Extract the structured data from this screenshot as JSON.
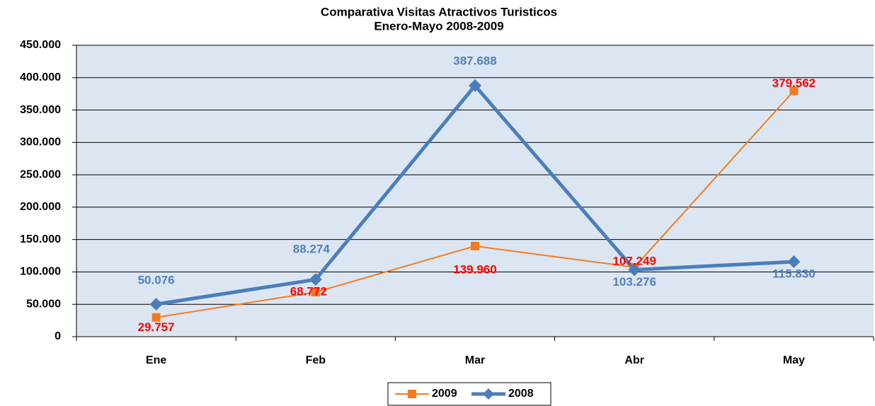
{
  "chart_data": {
    "type": "line",
    "title": "Comparativa Visitas Atractivos Turisticos",
    "subtitle": "Enero-Mayo 2008-2009",
    "categories": [
      "Ene",
      "Feb",
      "Mar",
      "Abr",
      "May"
    ],
    "series": [
      {
        "name": "2009",
        "color": "#f47b20",
        "label_color": "#ff0000",
        "marker": "square",
        "values": [
          29757,
          68772,
          139960,
          107249,
          379562
        ],
        "value_labels": [
          "29.757",
          "68.772",
          "139.960",
          "107.249",
          "379.562"
        ]
      },
      {
        "name": "2008",
        "color": "#4a7ebb",
        "label_color": "#4f81bd",
        "marker": "diamond",
        "values": [
          50076,
          88274,
          387688,
          103276,
          115830
        ],
        "value_labels": [
          "50.076",
          "88.274",
          "387.688",
          "103.276",
          "115.830"
        ]
      }
    ],
    "ylim": [
      0,
      450000
    ],
    "yticks": [
      0,
      {
        "value": 50000,
        "label": "50.000"
      },
      {
        "value": 100000,
        "label": "100.000"
      },
      {
        "value": 150000,
        "label": "150.000"
      },
      {
        "value": 200000,
        "label": "200.000"
      },
      {
        "value": 250000,
        "label": "250.000"
      },
      {
        "value": 300000,
        "label": "300.000"
      },
      {
        "value": 350000,
        "label": "350.000"
      },
      {
        "value": 400000,
        "label": "400.000"
      },
      {
        "value": 450000,
        "label": "450.000"
      }
    ],
    "grid": true,
    "legend": "bottom",
    "plot_background": "#dce6f2"
  }
}
